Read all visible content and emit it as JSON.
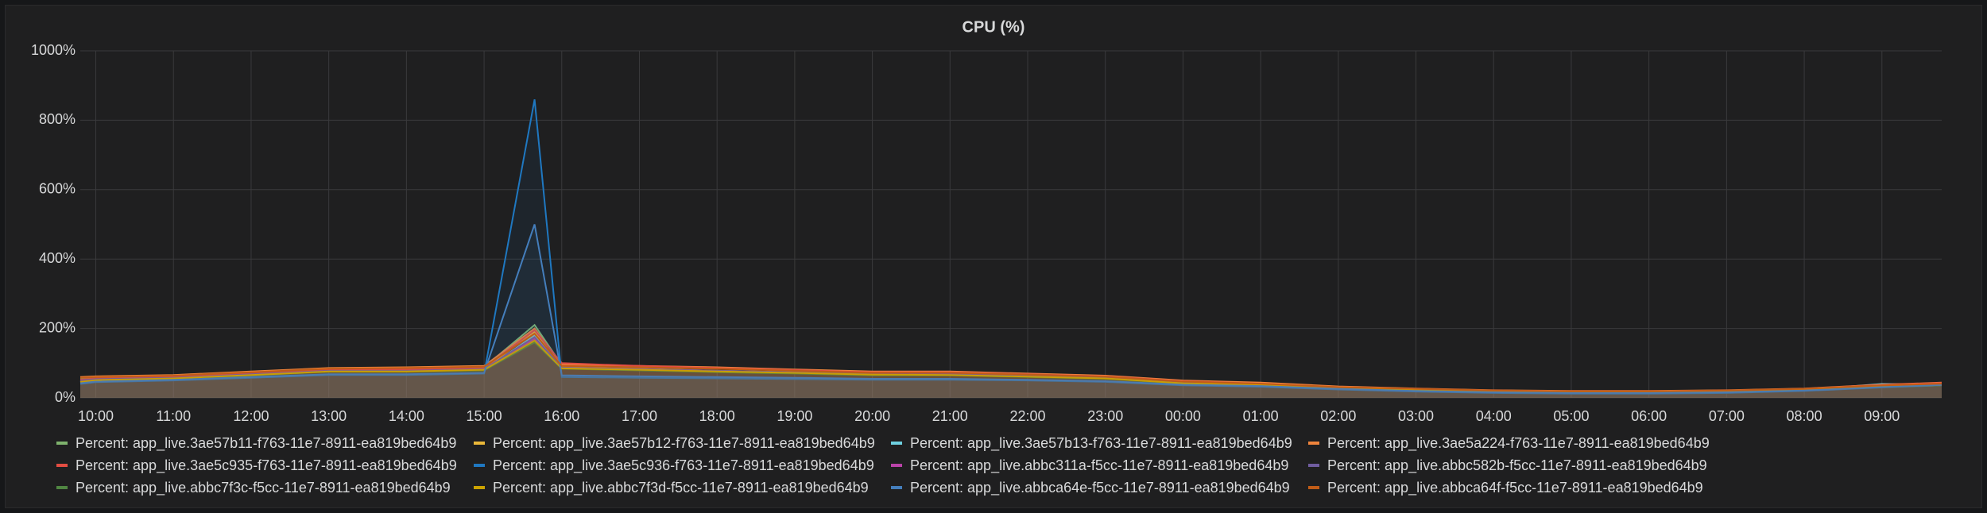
{
  "chart_data": {
    "type": "line",
    "title": "CPU (%)",
    "x": [
      9.8,
      10,
      11,
      12,
      13,
      14,
      15,
      15.65,
      16,
      17,
      18,
      19,
      20,
      21,
      22,
      23,
      24,
      25,
      26,
      27,
      28,
      29,
      30,
      31,
      32,
      33,
      33.77
    ],
    "xlim": [
      9.8,
      33.77
    ],
    "xticks": [
      {
        "value": 10,
        "label": "10:00"
      },
      {
        "value": 11,
        "label": "11:00"
      },
      {
        "value": 12,
        "label": "12:00"
      },
      {
        "value": 13,
        "label": "13:00"
      },
      {
        "value": 14,
        "label": "14:00"
      },
      {
        "value": 15,
        "label": "15:00"
      },
      {
        "value": 16,
        "label": "16:00"
      },
      {
        "value": 17,
        "label": "17:00"
      },
      {
        "value": 18,
        "label": "18:00"
      },
      {
        "value": 19,
        "label": "19:00"
      },
      {
        "value": 20,
        "label": "20:00"
      },
      {
        "value": 21,
        "label": "21:00"
      },
      {
        "value": 22,
        "label": "22:00"
      },
      {
        "value": 23,
        "label": "23:00"
      },
      {
        "value": 24,
        "label": "00:00"
      },
      {
        "value": 25,
        "label": "01:00"
      },
      {
        "value": 26,
        "label": "02:00"
      },
      {
        "value": 27,
        "label": "03:00"
      },
      {
        "value": 28,
        "label": "04:00"
      },
      {
        "value": 29,
        "label": "05:00"
      },
      {
        "value": 30,
        "label": "06:00"
      },
      {
        "value": 31,
        "label": "07:00"
      },
      {
        "value": 32,
        "label": "08:00"
      },
      {
        "value": 33,
        "label": "09:00"
      }
    ],
    "ylim": [
      0,
      1000
    ],
    "yticks": [
      {
        "value": 0,
        "label": "0%"
      },
      {
        "value": 200,
        "label": "200%"
      },
      {
        "value": 400,
        "label": "400%"
      },
      {
        "value": 600,
        "label": "600%"
      },
      {
        "value": 800,
        "label": "800%"
      },
      {
        "value": 1000,
        "label": "1000%"
      }
    ],
    "grid": true,
    "series": [
      {
        "name": "Percent: app_live.3ae57b11-f763-11e7-8911-ea819bed64b9",
        "color": "#7eb26d",
        "values": [
          55,
          58,
          62,
          72,
          82,
          84,
          88,
          210,
          95,
          90,
          85,
          80,
          75,
          72,
          68,
          62,
          48,
          42,
          32,
          26,
          21,
          19,
          19,
          21,
          26,
          36,
          42
        ]
      },
      {
        "name": "Percent: app_live.3ae57b12-f763-11e7-8911-ea819bed64b9",
        "color": "#eab839",
        "values": [
          48,
          52,
          58,
          68,
          78,
          80,
          84,
          190,
          88,
          84,
          78,
          74,
          68,
          68,
          63,
          58,
          44,
          39,
          29,
          24,
          19,
          17,
          17,
          19,
          24,
          34,
          39
        ]
      },
      {
        "name": "Percent: app_live.3ae57b13-f763-11e7-8911-ea819bed64b9",
        "color": "#6ed0e0",
        "values": [
          45,
          50,
          56,
          66,
          76,
          76,
          80,
          180,
          85,
          80,
          76,
          72,
          66,
          66,
          62,
          56,
          42,
          37,
          28,
          23,
          18,
          16,
          16,
          18,
          23,
          40,
          38
        ]
      },
      {
        "name": "Percent: app_live.3ae5a224-f763-11e7-8911-ea819bed64b9",
        "color": "#ef843c",
        "values": [
          60,
          62,
          66,
          76,
          86,
          88,
          92,
          200,
          96,
          92,
          88,
          82,
          76,
          76,
          70,
          64,
          50,
          44,
          33,
          27,
          22,
          20,
          20,
          22,
          27,
          38,
          44
        ]
      },
      {
        "name": "Percent: app_live.3ae5c935-f763-11e7-8911-ea819bed64b9",
        "color": "#e24d42",
        "values": [
          52,
          56,
          60,
          72,
          82,
          82,
          86,
          195,
          100,
          92,
          86,
          80,
          74,
          74,
          68,
          62,
          48,
          41,
          31,
          26,
          21,
          19,
          19,
          21,
          26,
          37,
          43
        ]
      },
      {
        "name": "Percent: app_live.3ae5c936-f763-11e7-8911-ea819bed64b9",
        "color": "#1f78c1",
        "values": [
          40,
          45,
          50,
          58,
          66,
          66,
          70,
          860,
          60,
          58,
          56,
          54,
          52,
          52,
          50,
          46,
          36,
          32,
          24,
          18,
          14,
          12,
          12,
          14,
          20,
          30,
          36
        ]
      },
      {
        "name": "Percent: app_live.abbc311a-f5cc-11e7-8911-ea819bed64b9",
        "color": "#ba43a9",
        "values": [
          47,
          52,
          57,
          67,
          77,
          77,
          82,
          170,
          86,
          82,
          77,
          73,
          68,
          67,
          62,
          57,
          43,
          38,
          29,
          24,
          19,
          17,
          17,
          19,
          24,
          33,
          38
        ]
      },
      {
        "name": "Percent: app_live.abbc582b-f5cc-11e7-8911-ea819bed64b9",
        "color": "#705da0",
        "values": [
          50,
          54,
          58,
          68,
          78,
          78,
          83,
          175,
          87,
          83,
          78,
          74,
          69,
          69,
          64,
          59,
          44,
          39,
          30,
          25,
          20,
          18,
          18,
          20,
          25,
          34,
          39
        ]
      },
      {
        "name": "Percent: app_live.abbc7f3c-f5cc-11e7-8911-ea819bed64b9",
        "color": "#508642",
        "values": [
          44,
          49,
          55,
          65,
          75,
          75,
          79,
          160,
          84,
          79,
          74,
          70,
          65,
          65,
          60,
          55,
          41,
          36,
          27,
          22,
          17,
          15,
          15,
          17,
          22,
          31,
          36
        ]
      },
      {
        "name": "Percent: app_live.abbc7f3d-f5cc-11e7-8911-ea819bed64b9",
        "color": "#cca300",
        "values": [
          46,
          51,
          56,
          66,
          76,
          76,
          81,
          165,
          85,
          81,
          76,
          72,
          67,
          66,
          61,
          56,
          42,
          37,
          28,
          23,
          18,
          16,
          16,
          18,
          23,
          32,
          37
        ]
      },
      {
        "name": "Percent: app_live.abbca64e-f5cc-11e7-8911-ea819bed64b9",
        "color": "#447ebc",
        "values": [
          42,
          47,
          52,
          60,
          68,
          68,
          72,
          500,
          65,
          62,
          60,
          58,
          55,
          55,
          52,
          48,
          38,
          34,
          26,
          20,
          16,
          14,
          14,
          16,
          21,
          31,
          37
        ]
      },
      {
        "name": "Percent: app_live.abbca64f-f5cc-11e7-8911-ea819bed64b9",
        "color": "#c15c17",
        "values": [
          58,
          60,
          64,
          74,
          84,
          86,
          90,
          185,
          92,
          88,
          84,
          78,
          72,
          72,
          67,
          61,
          47,
          41,
          31,
          26,
          21,
          19,
          19,
          21,
          26,
          36,
          41
        ]
      }
    ]
  }
}
